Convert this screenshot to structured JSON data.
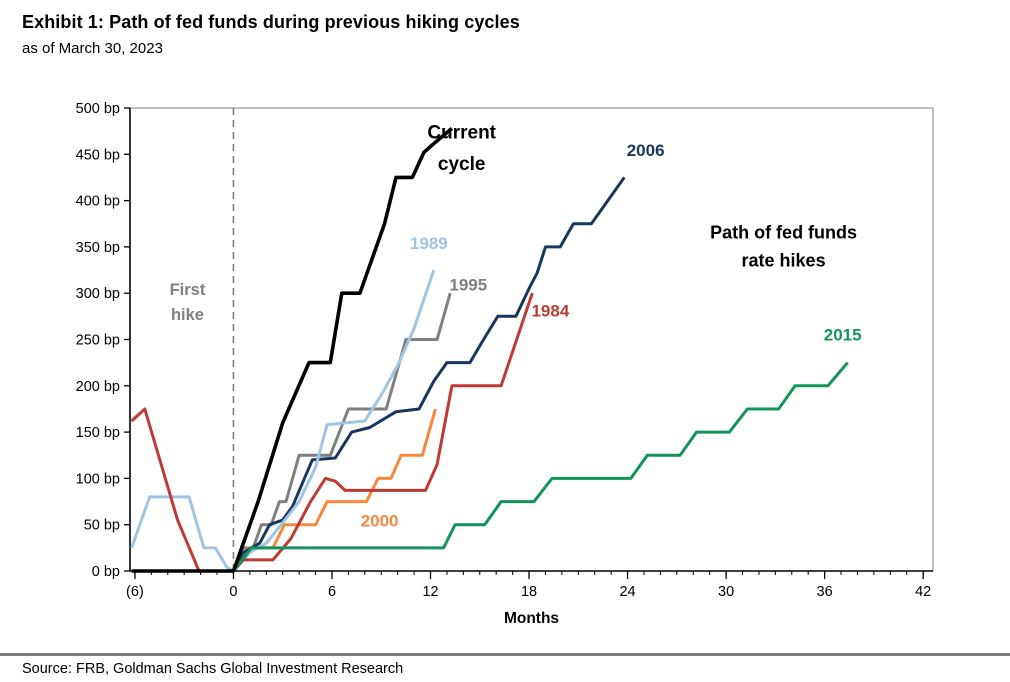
{
  "header": {
    "title": "Exhibit 1: Path of fed funds during previous hiking cycles",
    "subtitle": "as of March 30, 2023"
  },
  "footer": {
    "source": "Source: FRB, Goldman Sachs Global Investment Research"
  },
  "chart_data": {
    "type": "line",
    "title": "Path of fed funds during previous hiking cycles",
    "xlabel": "Months",
    "ylabel": "bp",
    "xlim": [
      -6.3,
      42.6
    ],
    "ylim": [
      0,
      500
    ],
    "grid": false,
    "first_hike_line_x": 0,
    "x_ticks": {
      "values": [
        -6,
        0,
        6,
        12,
        18,
        24,
        30,
        36,
        42
      ],
      "labels": [
        "(6)",
        "0",
        "6",
        "12",
        "18",
        "24",
        "30",
        "36",
        "42"
      ],
      "minor_step_months": 1
    },
    "y_ticks": {
      "values": [
        0,
        50,
        100,
        150,
        200,
        250,
        300,
        350,
        400,
        450,
        500
      ],
      "labels": [
        "0 bp",
        "50 bp",
        "100 bp",
        "150 bp",
        "200 bp",
        "250 bp",
        "300 bp",
        "350 bp",
        "400 bp",
        "450 bp",
        "500 bp"
      ]
    },
    "axis_colors": {
      "axis": "#000000",
      "frame": "#9a9a9a",
      "dashed_line": "#7f7f7f"
    },
    "series": [
      {
        "name": "1995",
        "color": "#7F7F7F",
        "width": 3,
        "points": [
          [
            0,
            0
          ],
          [
            0.6,
            25
          ],
          [
            1.2,
            25
          ],
          [
            1.7,
            50
          ],
          [
            2.3,
            50
          ],
          [
            2.8,
            75
          ],
          [
            3.2,
            75
          ],
          [
            4.0,
            125
          ],
          [
            5.9,
            125
          ],
          [
            7.0,
            175
          ],
          [
            9.3,
            175
          ],
          [
            10.5,
            250
          ],
          [
            12.4,
            250
          ],
          [
            13.2,
            300
          ]
        ]
      },
      {
        "name": "2000",
        "color": "#F6893D",
        "width": 3,
        "points": [
          [
            0,
            0
          ],
          [
            0.9,
            25
          ],
          [
            2.4,
            25
          ],
          [
            3.1,
            50
          ],
          [
            5.0,
            50
          ],
          [
            5.7,
            75
          ],
          [
            8.1,
            75
          ],
          [
            8.8,
            100
          ],
          [
            9.6,
            100
          ],
          [
            10.2,
            125
          ],
          [
            11.5,
            125
          ],
          [
            12.3,
            175
          ]
        ]
      },
      {
        "name": "2006",
        "color": "#17375E",
        "width": 3,
        "points": [
          [
            0,
            0
          ],
          [
            0.6,
            20
          ],
          [
            1.6,
            30
          ],
          [
            2.2,
            50
          ],
          [
            3.0,
            55
          ],
          [
            3.6,
            70
          ],
          [
            4.8,
            120
          ],
          [
            6.2,
            122
          ],
          [
            7.2,
            150
          ],
          [
            8.3,
            155
          ],
          [
            9.9,
            172
          ],
          [
            11.3,
            175
          ],
          [
            12.2,
            205
          ],
          [
            13.0,
            225
          ],
          [
            14.4,
            225
          ],
          [
            15.3,
            252
          ],
          [
            16.1,
            275
          ],
          [
            17.2,
            275
          ],
          [
            18.0,
            305
          ],
          [
            18.5,
            322
          ],
          [
            19.0,
            350
          ],
          [
            19.9,
            350
          ],
          [
            20.7,
            375
          ],
          [
            21.8,
            375
          ],
          [
            23.8,
            425
          ]
        ]
      },
      {
        "name": "1989",
        "color": "#A0C4E4",
        "width": 3,
        "points": [
          [
            -6.2,
            25
          ],
          [
            -5.1,
            80
          ],
          [
            -2.7,
            80
          ],
          [
            -1.8,
            25
          ],
          [
            -1.1,
            25
          ],
          [
            -0.4,
            4
          ],
          [
            0,
            0
          ],
          [
            1,
            20
          ],
          [
            2,
            30
          ],
          [
            3,
            52
          ],
          [
            4,
            75
          ],
          [
            5,
            112
          ],
          [
            5.7,
            158
          ],
          [
            8,
            162
          ],
          [
            9,
            190
          ],
          [
            10,
            222
          ],
          [
            11,
            262
          ],
          [
            12.2,
            325
          ]
        ]
      },
      {
        "name": "1984",
        "color": "#BE3A34",
        "width": 3,
        "points": [
          [
            -6.2,
            162
          ],
          [
            -5.4,
            175
          ],
          [
            -3.4,
            55
          ],
          [
            -2.1,
            0
          ],
          [
            0,
            0
          ],
          [
            0.6,
            12
          ],
          [
            2.4,
            12
          ],
          [
            3.5,
            35
          ],
          [
            4.7,
            75
          ],
          [
            5.6,
            100
          ],
          [
            6.2,
            97
          ],
          [
            6.8,
            87
          ],
          [
            11.7,
            87
          ],
          [
            12.4,
            115
          ],
          [
            13.3,
            200
          ],
          [
            16.3,
            200
          ],
          [
            18.2,
            300
          ]
        ]
      },
      {
        "name": "2015",
        "color": "#12945A",
        "width": 3,
        "points": [
          [
            0,
            0
          ],
          [
            1.1,
            25
          ],
          [
            12.8,
            25
          ],
          [
            13.5,
            50
          ],
          [
            15.3,
            50
          ],
          [
            16.3,
            75
          ],
          [
            18.3,
            75
          ],
          [
            19.4,
            100
          ],
          [
            24.2,
            100
          ],
          [
            25.2,
            125
          ],
          [
            27.2,
            125
          ],
          [
            28.2,
            150
          ],
          [
            30.2,
            150
          ],
          [
            31.3,
            175
          ],
          [
            33.2,
            175
          ],
          [
            34.2,
            200
          ],
          [
            36.2,
            200
          ],
          [
            37.4,
            225
          ]
        ]
      },
      {
        "name": "Current cycle",
        "color": "#000000",
        "width": 3.6,
        "points": [
          [
            -6.2,
            0
          ],
          [
            0,
            0
          ],
          [
            1.5,
            75
          ],
          [
            3,
            160
          ],
          [
            4.6,
            225
          ],
          [
            5.9,
            225
          ],
          [
            6.6,
            300
          ],
          [
            7.7,
            300
          ],
          [
            9.2,
            375
          ],
          [
            9.9,
            425
          ],
          [
            10.9,
            425
          ],
          [
            11.6,
            452
          ],
          [
            12.1,
            460
          ],
          [
            13.3,
            478
          ]
        ]
      }
    ],
    "annotations": [
      {
        "name": "label-first-hike",
        "lines": [
          "First",
          "hike"
        ],
        "x": -2.8,
        "y": 298,
        "gap": 27,
        "color": "#808080",
        "size": 16.5,
        "weight": "bold"
      },
      {
        "name": "label-current-cycle",
        "lines": [
          "Current",
          "cycle"
        ],
        "x": 13.9,
        "y": 467,
        "gap": 34,
        "color": "#000000",
        "size": 19,
        "weight": "bold"
      },
      {
        "name": "label-1989",
        "lines": [
          "1989"
        ],
        "x": 11.9,
        "y": 348,
        "gap": 0,
        "color": "#A0C4E4",
        "size": 17,
        "weight": "bold"
      },
      {
        "name": "label-1995",
        "lines": [
          "1995"
        ],
        "x": 14.3,
        "y": 303,
        "gap": 0,
        "color": "#7F7F7F",
        "size": 17,
        "weight": "bold"
      },
      {
        "name": "label-2006",
        "lines": [
          "2006"
        ],
        "x": 25.1,
        "y": 448,
        "gap": 0,
        "color": "#17375E",
        "size": 17,
        "weight": "bold"
      },
      {
        "name": "label-1984",
        "lines": [
          "1984"
        ],
        "x": 19.3,
        "y": 275,
        "gap": 0,
        "color": "#BE3A34",
        "size": 17,
        "weight": "bold"
      },
      {
        "name": "label-2000",
        "lines": [
          "2000"
        ],
        "x": 8.9,
        "y": 48,
        "gap": 0,
        "color": "#F6893D",
        "size": 17,
        "weight": "bold"
      },
      {
        "name": "label-2015",
        "lines": [
          "2015"
        ],
        "x": 37.1,
        "y": 249,
        "gap": 0,
        "color": "#12945A",
        "size": 17,
        "weight": "bold"
      },
      {
        "name": "label-path-of-fed-funds",
        "lines": [
          "Path of fed funds",
          "rate hikes"
        ],
        "x": 33.5,
        "y": 359,
        "gap": 30,
        "color": "#000000",
        "size": 18,
        "weight": "bold"
      }
    ]
  }
}
